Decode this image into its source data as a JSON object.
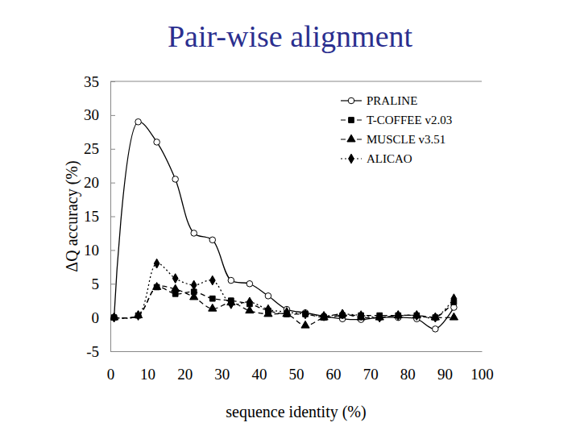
{
  "chart_data": {
    "type": "line",
    "title": "Pair-wise alignment",
    "x_label": "sequence identity (%)",
    "y_label": "ΔQ accuracy (%)",
    "x": [
      1,
      7.5,
      12.5,
      17.5,
      22.5,
      27.5,
      32.5,
      37.5,
      42.5,
      47.5,
      52.5,
      57.5,
      62.5,
      67.5,
      72.5,
      77.5,
      82.5,
      87.5,
      92.5
    ],
    "series": [
      {
        "name": "PRALINE",
        "color": "#000000",
        "marker": "open-circle",
        "line_style": "solid",
        "values": [
          0,
          29,
          26,
          20.5,
          12.5,
          11.5,
          5.5,
          5,
          3.2,
          1.2,
          0.7,
          0.2,
          -0.2,
          -0.3,
          0,
          0,
          -0.2,
          -1.7,
          1.5
        ]
      },
      {
        "name": "T-COFFEE v2.03",
        "color": "#000000",
        "marker": "square",
        "line_style": "dashed",
        "values": [
          0,
          0.3,
          4.5,
          3.5,
          3.8,
          2.8,
          2.5,
          2,
          1,
          0.5,
          0.5,
          0,
          0.3,
          0.3,
          0.3,
          0.3,
          0.3,
          0,
          2.3
        ]
      },
      {
        "name": "MUSCLE v3.51",
        "color": "#000000",
        "marker": "triangle",
        "line_style": "dashed",
        "values": [
          0,
          0.3,
          4.5,
          4.2,
          3,
          1.3,
          2.2,
          1,
          0.5,
          0.5,
          -1.2,
          0,
          0.5,
          0,
          0,
          0.3,
          0.3,
          0,
          0
        ]
      },
      {
        "name": "ALICAO",
        "color": "#000000",
        "marker": "diamond",
        "line_style": "dotted",
        "values": [
          0,
          0.3,
          8,
          5.8,
          4.8,
          5.5,
          2,
          2.3,
          1.2,
          0.8,
          0.5,
          0.2,
          0.5,
          0.3,
          0,
          0.3,
          0.3,
          0,
          2.8
        ]
      }
    ],
    "xlim": [
      0,
      100
    ],
    "xticks": [
      0,
      10,
      20,
      30,
      40,
      50,
      60,
      70,
      80,
      90,
      100
    ],
    "ylim": [
      -5,
      35
    ],
    "yticks": [
      -5,
      0,
      5,
      10,
      15,
      20,
      25,
      30,
      35
    ],
    "grid": false,
    "legend": "top-right"
  }
}
